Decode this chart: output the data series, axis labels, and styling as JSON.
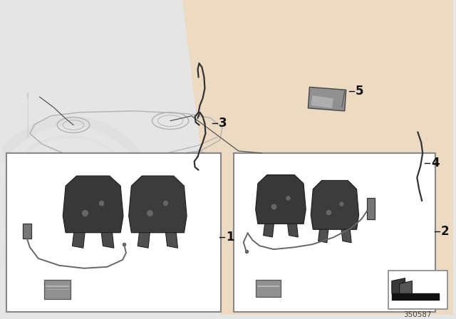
{
  "bg_color": "#e5e5e5",
  "accent_color": "#f0d5b0",
  "white": "#ffffff",
  "border_color": "#888888",
  "dark_pad": "#3a3a3a",
  "med_pad": "#555555",
  "wire_color": "#666666",
  "grease_color": "#909090",
  "text_color": "#111111",
  "car_edge": "#b5b5b5",
  "part_number": "350587",
  "label1": "1",
  "label2": "2",
  "label3": "3",
  "label4": "4",
  "label5": "5"
}
